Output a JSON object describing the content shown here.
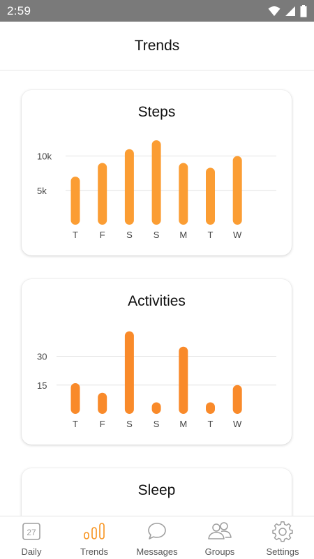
{
  "status_bar": {
    "time": "2:59"
  },
  "header": {
    "title": "Trends"
  },
  "colors": {
    "steps_bar": "#fb9d33",
    "activities_bar": "#f98a2a",
    "accent": "#f7931e",
    "icon_gray": "#9e9e9e"
  },
  "cards": {
    "steps": {
      "title": "Steps"
    },
    "activities": {
      "title": "Activities"
    },
    "sleep": {
      "title": "Sleep"
    }
  },
  "chart_data": [
    {
      "type": "bar",
      "title": "Steps",
      "categories": [
        "T",
        "F",
        "S",
        "S",
        "M",
        "T",
        "W"
      ],
      "values": [
        7000,
        9000,
        11000,
        12300,
        9000,
        8300,
        10000
      ],
      "yticks": [
        5000,
        10000
      ],
      "ytick_labels": [
        "5k",
        "10k"
      ],
      "ylim": [
        0,
        12500
      ],
      "grid": true
    },
    {
      "type": "bar",
      "title": "Activities",
      "categories": [
        "T",
        "F",
        "S",
        "S",
        "M",
        "T",
        "W"
      ],
      "values": [
        16,
        11,
        43,
        6,
        35,
        6,
        15
      ],
      "yticks": [
        15,
        30
      ],
      "ytick_labels": [
        "15",
        "30"
      ],
      "ylim": [
        0,
        44
      ],
      "grid": true
    }
  ],
  "tabs": [
    {
      "label": "Daily",
      "icon": "calendar-icon",
      "badge": "27"
    },
    {
      "label": "Trends",
      "icon": "bar-chart-icon"
    },
    {
      "label": "Messages",
      "icon": "chat-bubble-icon"
    },
    {
      "label": "Groups",
      "icon": "people-icon"
    },
    {
      "label": "Settings",
      "icon": "gear-icon"
    }
  ]
}
